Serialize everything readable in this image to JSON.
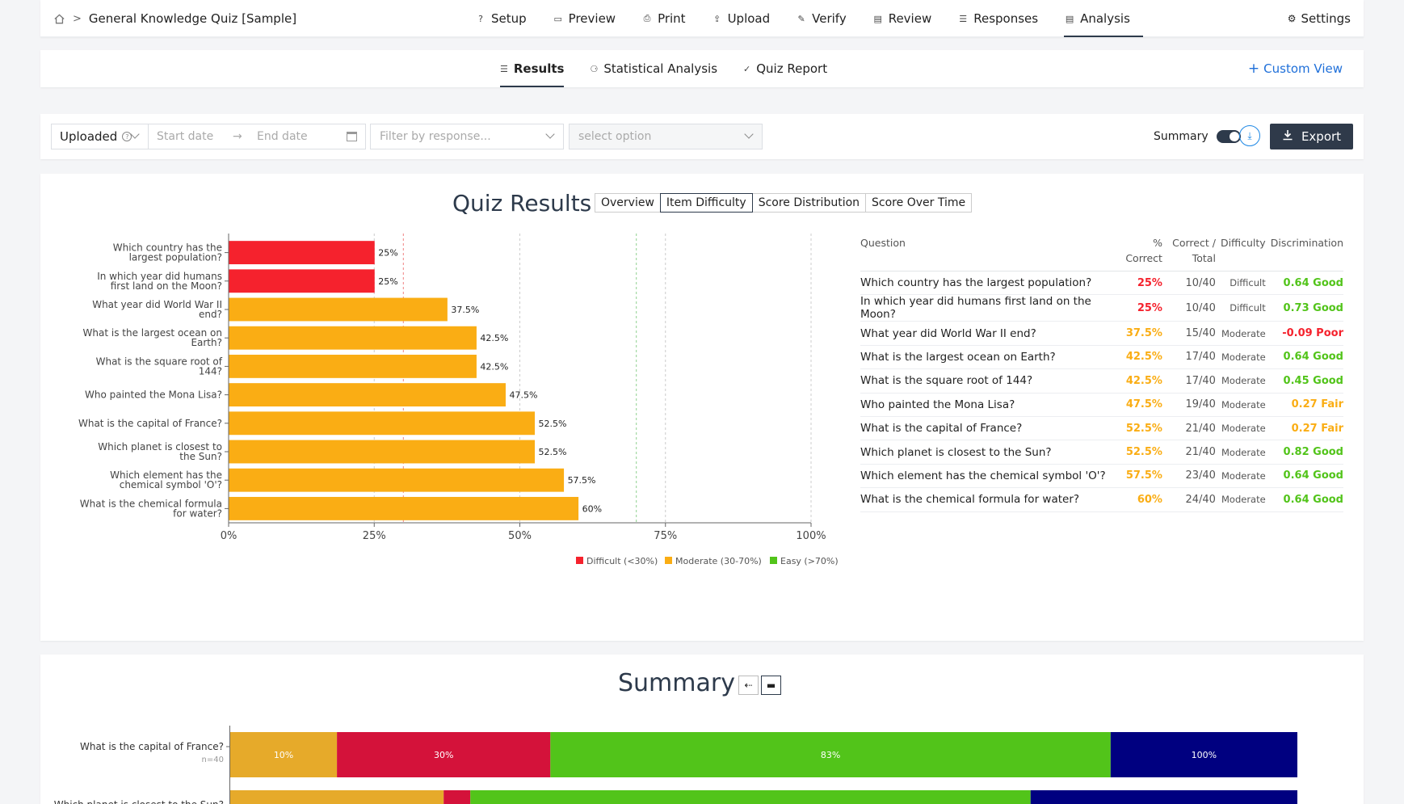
{
  "breadcrumb": {
    "title": "General Knowledge Quiz [Sample]"
  },
  "nav": {
    "items": [
      {
        "label": "Setup",
        "icon": "question-circle-icon"
      },
      {
        "label": "Preview",
        "icon": "monitor-icon"
      },
      {
        "label": "Print",
        "icon": "printer-icon"
      },
      {
        "label": "Upload",
        "icon": "upload-icon"
      },
      {
        "label": "Verify",
        "icon": "pen-icon"
      },
      {
        "label": "Review",
        "icon": "document-icon"
      },
      {
        "label": "Responses",
        "icon": "list-icon"
      },
      {
        "label": "Analysis",
        "icon": "chart-icon",
        "active": true
      }
    ],
    "settings": "Settings"
  },
  "subtabs": {
    "items": [
      {
        "label": "Results",
        "active": true
      },
      {
        "label": "Statistical Analysis"
      },
      {
        "label": "Quiz Report"
      }
    ],
    "custom_view": "Custom View"
  },
  "filters": {
    "uploaded": "Uploaded",
    "start_date": "Start date",
    "end_date": "End date",
    "response_placeholder": "Filter by response...",
    "select_placeholder": "select option",
    "summary_label": "Summary",
    "export_label": "Export"
  },
  "quiz": {
    "title": "Quiz Results",
    "view_tabs": [
      "Overview",
      "Item Difficulty",
      "Score Distribution",
      "Score Over Time"
    ],
    "active_view": "Item Difficulty"
  },
  "colors": {
    "difficult": "#f5222d",
    "moderate": "#faad14",
    "easy": "#52c41a",
    "good": "#52c41a",
    "fair": "#faad14",
    "poor": "#f5222d",
    "navy": "#000080",
    "crimson": "#d4123a",
    "gold": "#e6aa2a"
  },
  "chart_data": [
    {
      "type": "bar",
      "orientation": "horizontal",
      "categories": [
        "Which country has the largest population?",
        "In which year did humans first land on the Moon?",
        "What year did World War II end?",
        "What is the largest ocean on Earth?",
        "What is the square root of 144?",
        "Who painted the Mona Lisa?",
        "What is the capital of France?",
        "Which planet is closest to the Sun?",
        "Which element has the chemical symbol 'O'?",
        "What is the chemical formula for water?"
      ],
      "values": [
        25,
        25,
        37.5,
        42.5,
        42.5,
        47.5,
        52.5,
        52.5,
        57.5,
        60
      ],
      "value_labels": [
        "25%",
        "25%",
        "37.5%",
        "42.5%",
        "42.5%",
        "47.5%",
        "52.5%",
        "52.5%",
        "57.5%",
        "60%"
      ],
      "bar_classes": [
        "difficult",
        "difficult",
        "moderate",
        "moderate",
        "moderate",
        "moderate",
        "moderate",
        "moderate",
        "moderate",
        "moderate"
      ],
      "xlim": [
        0,
        100
      ],
      "xticks": [
        0,
        25,
        50,
        75,
        100
      ],
      "xtick_labels": [
        "0%",
        "25%",
        "50%",
        "75%",
        "100%"
      ],
      "reference_lines": [
        30,
        70
      ],
      "grid": true,
      "legend": [
        {
          "label": "Difficult (<30%)",
          "class": "difficult"
        },
        {
          "label": "Moderate (30-70%)",
          "class": "moderate"
        },
        {
          "label": "Easy (>70%)",
          "class": "easy"
        }
      ],
      "legend_position": "bottom"
    },
    {
      "type": "bar",
      "orientation": "horizontal-stacked",
      "title": "Summary",
      "rows": [
        {
          "label": "What is the capital of France?",
          "n": "n=40",
          "segments": [
            {
              "value": 10,
              "label": "10%",
              "color": "gold"
            },
            {
              "value": 20,
              "label": "30%",
              "color": "crimson"
            },
            {
              "value": 52.5,
              "label": "83%",
              "color": "easy"
            },
            {
              "value": 17.5,
              "label": "100%",
              "color": "navy"
            }
          ]
        },
        {
          "label": "Which planet is closest to the Sun?",
          "n": "",
          "segments": [
            {
              "value": 20,
              "label": "",
              "color": "gold"
            },
            {
              "value": 2.5,
              "label": "",
              "color": "crimson"
            },
            {
              "value": 52.5,
              "label": "",
              "color": "easy"
            },
            {
              "value": 25,
              "label": "",
              "color": "navy"
            }
          ]
        }
      ]
    }
  ],
  "table": {
    "headers": [
      "Question",
      "% Correct",
      "Correct / Total",
      "Difficulty",
      "Discrimination"
    ],
    "rows": [
      {
        "q": "Which country has the largest population?",
        "pct": "25%",
        "tot": "10/40",
        "diff": "Difficult",
        "disc": "0.64 Good",
        "pct_class": "difficult",
        "disc_class": "good"
      },
      {
        "q": "In which year did humans first land on the Moon?",
        "pct": "25%",
        "tot": "10/40",
        "diff": "Difficult",
        "disc": "0.73 Good",
        "pct_class": "difficult",
        "disc_class": "good"
      },
      {
        "q": "What year did World War II end?",
        "pct": "37.5%",
        "tot": "15/40",
        "diff": "Moderate",
        "disc": "-0.09 Poor",
        "pct_class": "moderate",
        "disc_class": "poor"
      },
      {
        "q": "What is the largest ocean on Earth?",
        "pct": "42.5%",
        "tot": "17/40",
        "diff": "Moderate",
        "disc": "0.64 Good",
        "pct_class": "moderate",
        "disc_class": "good"
      },
      {
        "q": "What is the square root of 144?",
        "pct": "42.5%",
        "tot": "17/40",
        "diff": "Moderate",
        "disc": "0.45 Good",
        "pct_class": "moderate",
        "disc_class": "good"
      },
      {
        "q": "Who painted the Mona Lisa?",
        "pct": "47.5%",
        "tot": "19/40",
        "diff": "Moderate",
        "disc": "0.27 Fair",
        "pct_class": "moderate",
        "disc_class": "fair"
      },
      {
        "q": "What is the capital of France?",
        "pct": "52.5%",
        "tot": "21/40",
        "diff": "Moderate",
        "disc": "0.27 Fair",
        "pct_class": "moderate",
        "disc_class": "fair"
      },
      {
        "q": "Which planet is closest to the Sun?",
        "pct": "52.5%",
        "tot": "21/40",
        "diff": "Moderate",
        "disc": "0.82 Good",
        "pct_class": "moderate",
        "disc_class": "good"
      },
      {
        "q": "Which element has the chemical symbol 'O'?",
        "pct": "57.5%",
        "tot": "23/40",
        "diff": "Moderate",
        "disc": "0.64 Good",
        "pct_class": "moderate",
        "disc_class": "good"
      },
      {
        "q": "What is the chemical formula for water?",
        "pct": "60%",
        "tot": "24/40",
        "diff": "Moderate",
        "disc": "0.64 Good",
        "pct_class": "moderate",
        "disc_class": "good"
      }
    ]
  }
}
